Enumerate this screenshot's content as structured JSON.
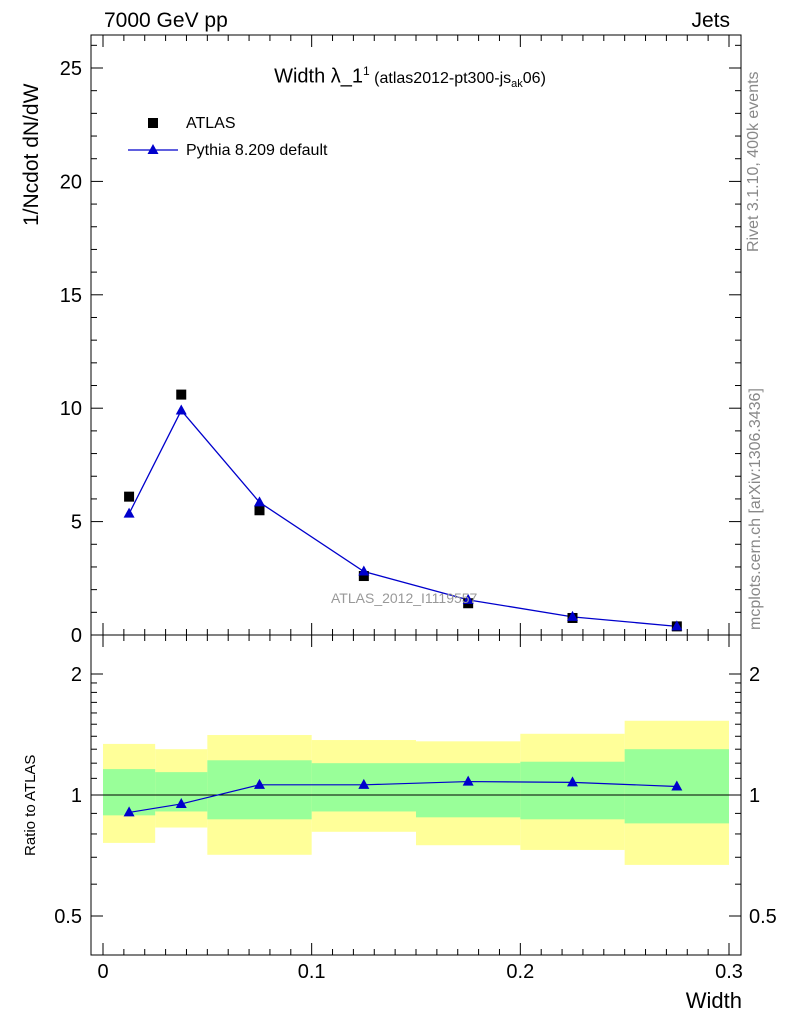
{
  "header": {
    "left": "7000 GeV pp",
    "right": "Jets"
  },
  "title": {
    "main": "Width λ_1",
    "sup": "1",
    "sub_pre": " (atlas2012-pt300-js",
    "sub_sub": "ak",
    "sub_post": "06)"
  },
  "side_labels": {
    "rivet": "Rivet 3.1.10,  400k events",
    "mcplots": "mcplots.cern.ch [arXiv:1306.3436]"
  },
  "watermark": "ATLAS_2012_I1119557",
  "legend": {
    "data_label": "ATLAS",
    "mc_label": "Pythia 8.209 default"
  },
  "colors": {
    "data": "#000000",
    "mc": "#0000cc",
    "band_inner": "#99ff99",
    "band_outer": "#ffff99"
  },
  "chart_data": [
    {
      "type": "scatter",
      "panel": "main",
      "ylabel": "1/Ncdot dN/dW",
      "xlim": [
        0,
        0.3
      ],
      "ylim": [
        0,
        26.5
      ],
      "y_ticks": [
        "0",
        "5",
        "10",
        "15",
        "20",
        "25"
      ],
      "x_bins": [
        [
          0,
          0.025
        ],
        [
          0.025,
          0.05
        ],
        [
          0.05,
          0.1
        ],
        [
          0.1,
          0.15
        ],
        [
          0.15,
          0.2
        ],
        [
          0.2,
          0.25
        ],
        [
          0.25,
          0.3
        ]
      ],
      "series": [
        {
          "name": "ATLAS",
          "marker": "square",
          "x": [
            0.0125,
            0.0375,
            0.075,
            0.125,
            0.175,
            0.225,
            0.275
          ],
          "values": [
            6.1,
            10.6,
            5.5,
            2.6,
            1.4,
            0.75,
            0.38
          ]
        },
        {
          "name": "Pythia 8.209 default",
          "marker": "triangle",
          "x": [
            0.0125,
            0.0375,
            0.075,
            0.125,
            0.175,
            0.225,
            0.275
          ],
          "values": [
            5.35,
            9.9,
            5.85,
            2.8,
            1.55,
            0.8,
            0.38
          ]
        }
      ]
    },
    {
      "type": "line",
      "panel": "ratio",
      "ylabel": "Ratio to ATLAS",
      "xlabel": "Width",
      "xlim": [
        0,
        0.3
      ],
      "ylim": [
        0.42,
        2.35
      ],
      "log_y": true,
      "x_ticks": [
        "0",
        "0.1",
        "0.2",
        "0.3"
      ],
      "y_ticks": [
        "0.5",
        "1",
        "2"
      ],
      "band_inner": {
        "lo": [
          0.89,
          0.91,
          0.87,
          0.91,
          0.88,
          0.87,
          0.85
        ],
        "hi": [
          1.16,
          1.14,
          1.22,
          1.2,
          1.2,
          1.21,
          1.3
        ]
      },
      "band_outer": {
        "lo": [
          0.76,
          0.83,
          0.71,
          0.81,
          0.75,
          0.73,
          0.67
        ],
        "hi": [
          1.34,
          1.3,
          1.41,
          1.37,
          1.36,
          1.42,
          1.53
        ]
      },
      "series": [
        {
          "name": "Pythia 8.209 default",
          "x": [
            0.0125,
            0.0375,
            0.075,
            0.125,
            0.175,
            0.225,
            0.275
          ],
          "values": [
            0.905,
            0.95,
            1.06,
            1.06,
            1.08,
            1.075,
            1.05
          ]
        }
      ]
    }
  ]
}
